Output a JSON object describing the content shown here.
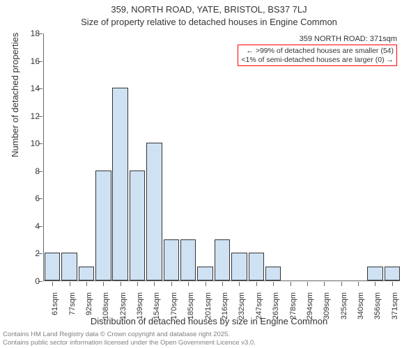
{
  "title_line1": "359, NORTH ROAD, YATE, BRISTOL, BS37 7LJ",
  "title_line2": "Size of property relative to detached houses in Engine Common",
  "yaxis_title": "Number of detached properties",
  "xaxis_title": "Distribution of detached houses by size in Engine Common",
  "chart": {
    "type": "bar",
    "ymin": 0,
    "ymax": 18,
    "ytick_step": 2,
    "categories": [
      "61sqm",
      "77sqm",
      "92sqm",
      "108sqm",
      "123sqm",
      "139sqm",
      "154sqm",
      "170sqm",
      "185sqm",
      "201sqm",
      "216sqm",
      "232sqm",
      "247sqm",
      "263sqm",
      "278sqm",
      "294sqm",
      "309sqm",
      "325sqm",
      "340sqm",
      "356sqm",
      "371sqm"
    ],
    "values": [
      2,
      2,
      1,
      8,
      14,
      8,
      10,
      3,
      3,
      1,
      3,
      2,
      2,
      1,
      0,
      0,
      0,
      0,
      0,
      1,
      1
    ],
    "bar_fill": "#cfe2f3",
    "bar_stroke": "#333333",
    "bar_width": 0.92,
    "background": "#ffffff",
    "axis_color": "#666666",
    "tick_color": "#666666",
    "text_color": "#333333",
    "label_fontsize": 12,
    "tick_fontsize": 11
  },
  "annotation": {
    "title": "359 NORTH ROAD: 371sqm",
    "line1": "← >99% of detached houses are smaller (54)",
    "line2": "<1% of semi-detached houses are larger (0) →",
    "border_color": "#ff0000",
    "font_size": 10.5
  },
  "footer_line1": "Contains HM Land Registry data © Crown copyright and database right 2025.",
  "footer_line2": "Contains public sector information licensed under the Open Government Licence v3.0."
}
